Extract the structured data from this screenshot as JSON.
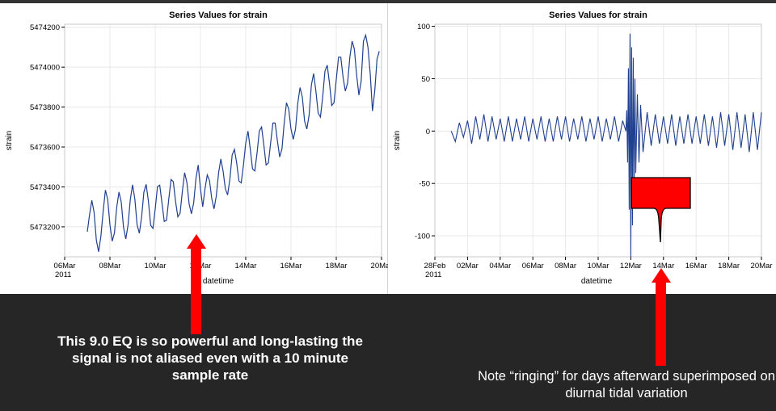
{
  "captions": {
    "left": "This 9.0 EQ is so powerful and long-lasting the signal is not aliased even with a 10 minute sample rate",
    "right": "Note “ringing” for days afterward superimposed on diurnal tidal variation"
  },
  "colors": {
    "series": "#1f3f8f",
    "arrow": "#ff0000",
    "panel": "#262626",
    "grid": "#e8e8e8"
  },
  "chart_data": [
    {
      "type": "line",
      "title": "Series Values for strain",
      "xlabel": "datetime",
      "ylabel": "strain",
      "x_unit": "days since 06Mar2011",
      "xlim": [
        0,
        14
      ],
      "ylim": [
        5473050,
        5474215
      ],
      "xticks": [
        {
          "x": 0,
          "label": "06Mar",
          "sub": "2011"
        },
        {
          "x": 2,
          "label": "08Mar"
        },
        {
          "x": 4,
          "label": "10Mar"
        },
        {
          "x": 6,
          "label": "12Mar"
        },
        {
          "x": 8,
          "label": "14Mar"
        },
        {
          "x": 10,
          "label": "16Mar"
        },
        {
          "x": 12,
          "label": "18Mar"
        },
        {
          "x": 14,
          "label": "20Mar"
        }
      ],
      "yticks": [
        {
          "y": 5473200,
          "label": "5473200"
        },
        {
          "y": 5473400,
          "label": "5473400"
        },
        {
          "y": 5473600,
          "label": "5473600"
        },
        {
          "y": 5473800,
          "label": "5473800"
        },
        {
          "y": 5474000,
          "label": "5474000"
        },
        {
          "y": 5474200,
          "label": "5474200"
        }
      ],
      "grid": true,
      "series": [
        {
          "x": [
            1.0,
            1.1,
            1.2,
            1.3,
            1.4,
            1.5,
            1.6,
            1.7,
            1.8,
            1.9,
            2.0,
            2.1,
            2.2,
            2.3,
            2.4,
            2.5,
            2.6,
            2.7,
            2.8,
            2.9,
            3.0,
            3.1,
            3.2,
            3.3,
            3.4,
            3.5,
            3.6,
            3.7,
            3.8,
            3.9,
            4.0,
            4.1,
            4.2,
            4.3,
            4.4,
            4.5,
            4.6,
            4.7,
            4.8,
            4.9,
            5.0,
            5.1,
            5.2,
            5.3,
            5.4,
            5.5,
            5.6,
            5.7,
            5.8,
            5.9,
            6.0,
            6.1,
            6.2,
            6.3,
            6.4,
            6.5,
            6.6,
            6.7,
            6.8,
            6.9,
            7.0,
            7.1,
            7.2,
            7.3,
            7.4,
            7.5,
            7.6,
            7.7,
            7.8,
            7.9,
            8.0,
            8.1,
            8.2,
            8.3,
            8.4,
            8.5,
            8.6,
            8.7,
            8.8,
            8.9,
            9.0,
            9.1,
            9.2,
            9.3,
            9.4,
            9.5,
            9.6,
            9.7,
            9.8,
            9.9,
            10.0,
            10.1,
            10.2,
            10.3,
            10.4,
            10.5,
            10.6,
            10.7,
            10.8,
            10.9,
            11.0,
            11.1,
            11.2,
            11.3,
            11.4,
            11.5,
            11.6,
            11.7,
            11.8,
            11.9,
            12.0,
            12.1,
            12.2,
            12.3,
            12.4,
            12.5,
            12.6,
            12.7,
            12.8,
            12.9,
            13.0,
            13.1,
            13.2,
            13.3,
            13.4,
            13.5,
            13.6,
            13.7,
            13.8,
            13.9
          ],
          "y": [
            5473176,
            5473261,
            5473333,
            5473272,
            5473133,
            5473075,
            5473152,
            5473276,
            5473384,
            5473338,
            5473210,
            5473128,
            5473170,
            5473298,
            5473374,
            5473324,
            5473198,
            5473139,
            5473209,
            5473336,
            5473411,
            5473340,
            5473210,
            5473168,
            5473250,
            5473374,
            5473413,
            5473328,
            5473208,
            5473192,
            5473289,
            5473401,
            5473409,
            5473318,
            5473227,
            5473233,
            5473339,
            5473437,
            5473426,
            5473327,
            5473250,
            5473268,
            5473378,
            5473471,
            5473422,
            5473314,
            5473265,
            5473320,
            5473441,
            5473510,
            5473390,
            5473300,
            5473390,
            5473460,
            5473431,
            5473340,
            5473290,
            5473355,
            5473470,
            5473540,
            5473479,
            5473390,
            5473360,
            5473440,
            5473560,
            5473588,
            5473520,
            5473430,
            5473420,
            5473510,
            5473620,
            5473680,
            5473590,
            5473490,
            5473480,
            5473570,
            5473680,
            5473700,
            5473610,
            5473510,
            5473520,
            5473620,
            5473720,
            5473720,
            5473630,
            5473550,
            5473590,
            5473720,
            5473822,
            5473790,
            5473690,
            5473638,
            5473690,
            5473820,
            5473898,
            5473850,
            5473730,
            5473690,
            5473760,
            5473910,
            5473968,
            5473880,
            5473770,
            5473750,
            5473850,
            5473980,
            5474010,
            5473920,
            5473808,
            5473822,
            5473938,
            5474050,
            5474050,
            5473950,
            5473880,
            5473920,
            5474050,
            5474130,
            5474090,
            5473960,
            5473860,
            5473930,
            5474130,
            5474160,
            5474100,
            5473968,
            5473780,
            5473880,
            5474040,
            5474080
          ]
        }
      ]
    },
    {
      "type": "line",
      "title": "Series Values for strain",
      "xlabel": "datetime",
      "ylabel": "strain",
      "x_unit": "days since 28Feb2011",
      "xlim": [
        0,
        20
      ],
      "ylim": [
        -120,
        102
      ],
      "xticks": [
        {
          "x": 0,
          "label": "28Feb",
          "sub": "2011"
        },
        {
          "x": 2,
          "label": "02Mar"
        },
        {
          "x": 4,
          "label": "04Mar"
        },
        {
          "x": 6,
          "label": "06Mar"
        },
        {
          "x": 8,
          "label": "08Mar"
        },
        {
          "x": 10,
          "label": "10Mar"
        },
        {
          "x": 12,
          "label": "12Mar"
        },
        {
          "x": 14,
          "label": "14Mar"
        },
        {
          "x": 16,
          "label": "16Mar"
        },
        {
          "x": 18,
          "label": "18Mar"
        },
        {
          "x": 20,
          "label": "20Mar"
        }
      ],
      "yticks": [
        {
          "y": -100,
          "label": "-100"
        },
        {
          "y": -50,
          "label": "-50"
        },
        {
          "y": 0,
          "label": "0"
        },
        {
          "y": 50,
          "label": "50"
        },
        {
          "y": 100,
          "label": "100"
        }
      ],
      "grid": true,
      "series": [
        {
          "x": [
            1.0,
            1.25,
            1.5,
            1.75,
            2.0,
            2.25,
            2.5,
            2.75,
            3.0,
            3.25,
            3.5,
            3.75,
            4.0,
            4.25,
            4.5,
            4.75,
            5.0,
            5.25,
            5.5,
            5.75,
            6.0,
            6.25,
            6.5,
            6.75,
            7.0,
            7.25,
            7.5,
            7.75,
            8.0,
            8.25,
            8.5,
            8.75,
            9.0,
            9.25,
            9.5,
            9.75,
            10.0,
            10.25,
            10.5,
            10.75,
            11.0,
            11.25,
            11.5,
            11.7,
            11.75,
            11.8,
            11.85,
            11.9,
            11.95,
            12.0,
            12.05,
            12.1,
            12.15,
            12.2,
            12.25,
            12.3,
            12.4,
            12.5,
            12.6,
            12.75,
            13.0,
            13.25,
            13.5,
            13.75,
            14.0,
            14.25,
            14.5,
            14.75,
            15.0,
            15.25,
            15.5,
            15.75,
            16.0,
            16.25,
            16.5,
            16.75,
            17.0,
            17.25,
            17.5,
            17.75,
            18.0,
            18.25,
            18.5,
            18.75,
            19.0,
            19.25,
            19.5,
            19.75,
            20.0
          ],
          "y": [
            0,
            -10,
            8,
            -6,
            10,
            -12,
            14,
            -8,
            16,
            -10,
            14,
            -8,
            12,
            -10,
            14,
            -10,
            12,
            -8,
            14,
            -10,
            12,
            -8,
            14,
            -10,
            12,
            -10,
            14,
            -8,
            14,
            -10,
            12,
            -8,
            14,
            -10,
            12,
            -8,
            14,
            -10,
            12,
            -8,
            14,
            -10,
            10,
            0,
            20,
            -30,
            60,
            -75,
            93,
            -120,
            80,
            -90,
            70,
            -60,
            50,
            -40,
            35,
            -30,
            25,
            -20,
            18,
            -14,
            16,
            -12,
            14,
            -12,
            16,
            -14,
            14,
            -12,
            16,
            -12,
            14,
            -12,
            16,
            -14,
            14,
            -16,
            18,
            -14,
            16,
            -18,
            18,
            -16,
            16,
            -20,
            18,
            -18,
            18
          ]
        }
      ]
    }
  ]
}
